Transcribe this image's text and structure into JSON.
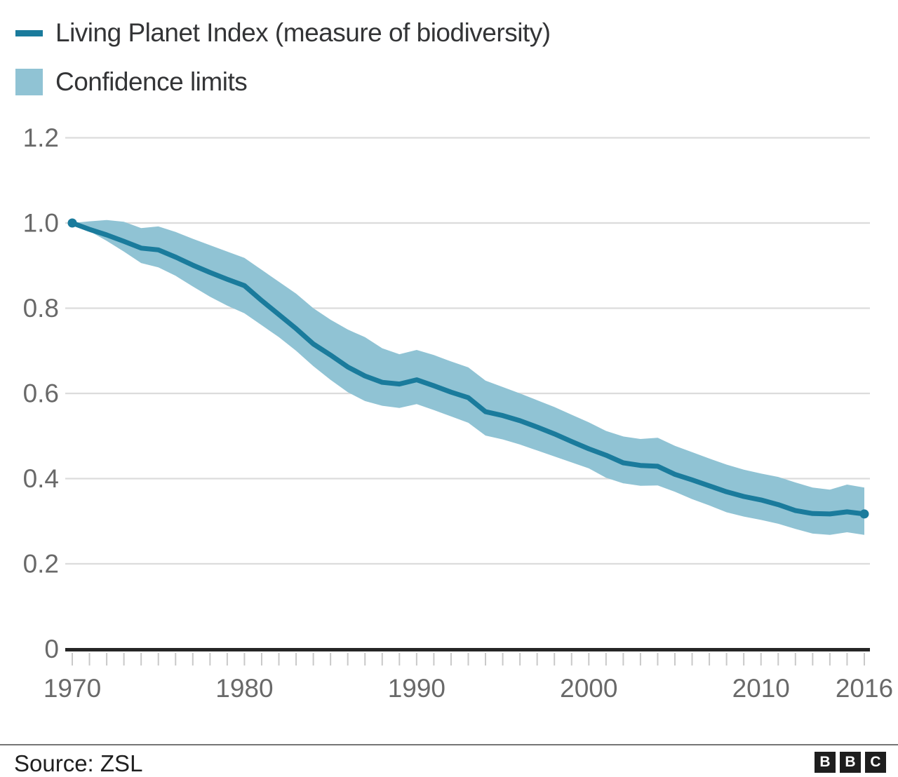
{
  "legend": {
    "items": [
      {
        "label": "Living Planet Index (measure of biodiversity)",
        "swatch": "line"
      },
      {
        "label": "Confidence limits",
        "swatch": "box"
      }
    ]
  },
  "footer": {
    "source": "Source: ZSL",
    "logo_letters": [
      "B",
      "B",
      "C"
    ]
  },
  "colors": {
    "line": "#1A7B9C",
    "band": "#90C3D4",
    "grid": "#DCDCDC",
    "axis": "#262626",
    "tick": "#C9C9C9",
    "label": "#696969"
  },
  "chart_data": {
    "type": "line",
    "title": "Living Planet Index (measure of biodiversity)",
    "xlabel": "",
    "ylabel": "",
    "grid": "horizontal",
    "legend_position": "top-left",
    "x_axis": {
      "range": [
        1970,
        2016
      ],
      "label_ticks": [
        1970,
        1980,
        1990,
        2000,
        2010,
        2016
      ],
      "minor_tick_every_year": true
    },
    "y_axis": {
      "range": [
        0,
        1.2
      ],
      "tick_labels": [
        "1.2",
        "1.0",
        "0.8",
        "0.6",
        "0.4",
        "0.2",
        "0"
      ],
      "tick_values": [
        1.2,
        1.0,
        0.8,
        0.6,
        0.4,
        0.2,
        0
      ]
    },
    "years": [
      1970,
      1971,
      1972,
      1973,
      1974,
      1975,
      1976,
      1977,
      1978,
      1979,
      1980,
      1981,
      1982,
      1983,
      1984,
      1985,
      1986,
      1987,
      1988,
      1989,
      1990,
      1991,
      1992,
      1993,
      1994,
      1995,
      1996,
      1997,
      1998,
      1999,
      2000,
      2001,
      2002,
      2003,
      2004,
      2005,
      2006,
      2007,
      2008,
      2009,
      2010,
      2011,
      2012,
      2013,
      2014,
      2015,
      2016
    ],
    "series": [
      {
        "name": "Living Planet Index (measure of biodiversity)",
        "role": "line",
        "values": [
          1.0,
          0.985,
          0.972,
          0.957,
          0.941,
          0.937,
          0.92,
          0.901,
          0.884,
          0.868,
          0.853,
          0.818,
          0.785,
          0.752,
          0.716,
          0.69,
          0.662,
          0.641,
          0.626,
          0.622,
          0.632,
          0.618,
          0.603,
          0.59,
          0.557,
          0.548,
          0.536,
          0.521,
          0.505,
          0.487,
          0.47,
          0.455,
          0.437,
          0.431,
          0.429,
          0.41,
          0.397,
          0.383,
          0.369,
          0.358,
          0.35,
          0.339,
          0.325,
          0.318,
          0.317,
          0.322,
          0.317
        ]
      },
      {
        "name": "Confidence limit (upper)",
        "role": "band-upper",
        "values": [
          1.0,
          1.004,
          1.007,
          1.003,
          0.988,
          0.992,
          0.979,
          0.963,
          0.948,
          0.933,
          0.918,
          0.89,
          0.862,
          0.834,
          0.8,
          0.773,
          0.75,
          0.732,
          0.706,
          0.692,
          0.702,
          0.69,
          0.675,
          0.661,
          0.63,
          0.615,
          0.6,
          0.584,
          0.568,
          0.55,
          0.532,
          0.512,
          0.499,
          0.493,
          0.496,
          0.477,
          0.462,
          0.447,
          0.433,
          0.421,
          0.412,
          0.404,
          0.391,
          0.379,
          0.374,
          0.386,
          0.379
        ]
      },
      {
        "name": "Confidence limit (lower)",
        "role": "band-lower",
        "values": [
          1.0,
          0.981,
          0.958,
          0.933,
          0.906,
          0.896,
          0.876,
          0.851,
          0.827,
          0.806,
          0.788,
          0.76,
          0.732,
          0.7,
          0.664,
          0.632,
          0.603,
          0.582,
          0.571,
          0.566,
          0.575,
          0.561,
          0.546,
          0.531,
          0.501,
          0.492,
          0.48,
          0.466,
          0.452,
          0.438,
          0.424,
          0.402,
          0.389,
          0.383,
          0.384,
          0.369,
          0.352,
          0.337,
          0.321,
          0.311,
          0.303,
          0.294,
          0.282,
          0.271,
          0.268,
          0.274,
          0.268
        ]
      }
    ]
  }
}
